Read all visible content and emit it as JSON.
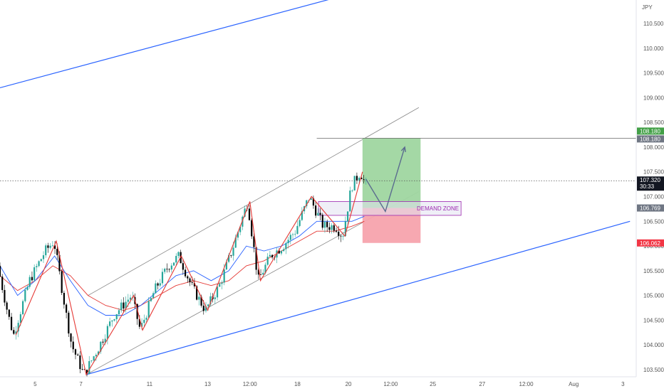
{
  "chart_data": {
    "type": "candlestick",
    "currency_label": "JPY",
    "y_range": [
      103.35,
      111.0
    ],
    "y_ticks": [
      "103.500",
      "104.000",
      "104.500",
      "105.000",
      "105.500",
      "106.000",
      "106.500",
      "107.000",
      "107.500",
      "108.000",
      "108.500",
      "109.000",
      "109.500",
      "110.000",
      "110.500"
    ],
    "x_range": [
      0,
      36
    ],
    "x_ticks": [
      {
        "x": 2.0,
        "label": "5"
      },
      {
        "x": 4.6,
        "label": "7"
      },
      {
        "x": 8.5,
        "label": "11"
      },
      {
        "x": 11.8,
        "label": "13"
      },
      {
        "x": 14.2,
        "label": "12:00"
      },
      {
        "x": 16.9,
        "label": "18"
      },
      {
        "x": 19.8,
        "label": "20"
      },
      {
        "x": 22.2,
        "label": "12:00"
      },
      {
        "x": 24.6,
        "label": "25"
      },
      {
        "x": 27.4,
        "label": "27"
      },
      {
        "x": 29.9,
        "label": "12:00"
      },
      {
        "x": 32.6,
        "label": "Aug"
      },
      {
        "x": 35.4,
        "label": "3"
      }
    ],
    "price_path": [
      [
        0,
        105.6
      ],
      [
        0.6,
        104.6
      ],
      [
        0.9,
        104.2
      ],
      [
        1.8,
        105.3
      ],
      [
        2.7,
        105.9
      ],
      [
        3.2,
        106.1
      ],
      [
        3.9,
        104.6
      ],
      [
        4.2,
        104.0
      ],
      [
        4.9,
        103.4
      ],
      [
        5.8,
        104.0
      ],
      [
        6.6,
        104.6
      ],
      [
        7.1,
        104.8
      ],
      [
        7.6,
        105.0
      ],
      [
        8.1,
        104.3
      ],
      [
        8.9,
        105.1
      ],
      [
        9.7,
        105.6
      ],
      [
        10.3,
        105.8
      ],
      [
        11.0,
        105.2
      ],
      [
        11.8,
        104.7
      ],
      [
        12.6,
        105.2
      ],
      [
        13.3,
        105.9
      ],
      [
        14.2,
        106.9
      ],
      [
        14.8,
        105.3
      ],
      [
        15.5,
        105.8
      ],
      [
        16.2,
        106.0
      ],
      [
        16.9,
        106.3
      ],
      [
        17.7,
        107.0
      ],
      [
        18.5,
        106.4
      ],
      [
        19.2,
        106.4
      ],
      [
        19.6,
        106.2
      ],
      [
        20.1,
        107.2
      ],
      [
        20.6,
        107.5
      ],
      [
        20.9,
        107.25
      ]
    ],
    "ma_blue": [
      [
        0,
        105.6
      ],
      [
        1.0,
        105.0
      ],
      [
        2.0,
        105.3
      ],
      [
        3.1,
        105.8
      ],
      [
        4.0,
        105.3
      ],
      [
        5.0,
        104.8
      ],
      [
        6.0,
        104.6
      ],
      [
        7.0,
        104.6
      ],
      [
        8.0,
        104.8
      ],
      [
        9.0,
        105.1
      ],
      [
        10.0,
        105.4
      ],
      [
        11.0,
        105.5
      ],
      [
        12.0,
        105.3
      ],
      [
        13.0,
        105.5
      ],
      [
        14.0,
        106.0
      ],
      [
        15.0,
        105.9
      ],
      [
        16.0,
        106.0
      ],
      [
        17.0,
        106.2
      ],
      [
        18.0,
        106.5
      ],
      [
        19.0,
        106.5
      ],
      [
        20.0,
        106.5
      ],
      [
        20.7,
        106.6
      ]
    ],
    "ma_red": [
      [
        0,
        105.4
      ],
      [
        1.0,
        105.1
      ],
      [
        2.0,
        105.3
      ],
      [
        3.0,
        105.6
      ],
      [
        4.0,
        105.4
      ],
      [
        5.0,
        105.0
      ],
      [
        6.0,
        104.8
      ],
      [
        7.0,
        104.7
      ],
      [
        8.0,
        104.8
      ],
      [
        9.0,
        105.0
      ],
      [
        10.0,
        105.2
      ],
      [
        11.0,
        105.3
      ],
      [
        12.0,
        105.2
      ],
      [
        13.0,
        105.3
      ],
      [
        14.0,
        105.6
      ],
      [
        15.0,
        105.7
      ],
      [
        16.0,
        105.9
      ],
      [
        17.0,
        106.1
      ],
      [
        18.0,
        106.3
      ],
      [
        19.0,
        106.3
      ],
      [
        20.0,
        106.4
      ],
      [
        20.7,
        106.5
      ]
    ],
    "zigzag": [
      [
        0.9,
        104.2
      ],
      [
        3.2,
        106.1
      ],
      [
        4.9,
        103.4
      ],
      [
        7.6,
        105.0
      ],
      [
        8.1,
        104.3
      ],
      [
        10.3,
        105.8
      ],
      [
        11.8,
        104.7
      ],
      [
        14.2,
        106.9
      ],
      [
        14.8,
        105.3
      ],
      [
        17.7,
        107.0
      ],
      [
        19.6,
        106.2
      ],
      [
        20.6,
        107.5
      ]
    ],
    "trendlines": [
      {
        "color": "#2962ff",
        "from": [
          0,
          109.2
        ],
        "to": [
          22.0,
          111.3
        ]
      },
      {
        "color": "#2962ff",
        "from": [
          4.9,
          103.4
        ],
        "to": [
          35.8,
          106.5
        ]
      },
      {
        "color": "#888888",
        "from": [
          5.0,
          105.0
        ],
        "to": [
          23.8,
          108.8
        ]
      },
      {
        "color": "#888888",
        "from": [
          4.9,
          103.4
        ],
        "to": [
          23.8,
          107.1
        ]
      }
    ],
    "current_price": {
      "value": 107.32,
      "label": "107.320",
      "countdown": "30:33"
    },
    "target": {
      "value": 108.18,
      "label": "108.180",
      "line_from_x": 18.0
    },
    "entry": {
      "value": 106.769,
      "label": "106.769"
    },
    "stop": {
      "value": 106.062,
      "label": "106.062"
    },
    "position_box": {
      "x_from": 20.6,
      "x_to": 23.9
    },
    "demand_zone": {
      "label": "DEMAND ZONE",
      "x_from": 18.1,
      "x_to": 26.2,
      "y_top": 106.9,
      "y_bottom": 106.62
    },
    "forecast_path": [
      [
        20.8,
        107.35
      ],
      [
        21.9,
        106.7
      ],
      [
        23.0,
        108.0
      ]
    ],
    "colors": {
      "up": "#26a69a",
      "down": "#000000",
      "blue_line": "#2962ff",
      "red_line": "#e53935",
      "target_badge": "#43a047",
      "stop_badge": "#f23645",
      "entry_badge": "#6f7683",
      "profit_fill": "#9fd6a0",
      "loss_fill": "#f7a3ad",
      "zone_stroke": "#9c27b0",
      "zone_text": "#9c27b0",
      "forecast": "#5b6c8f"
    }
  }
}
